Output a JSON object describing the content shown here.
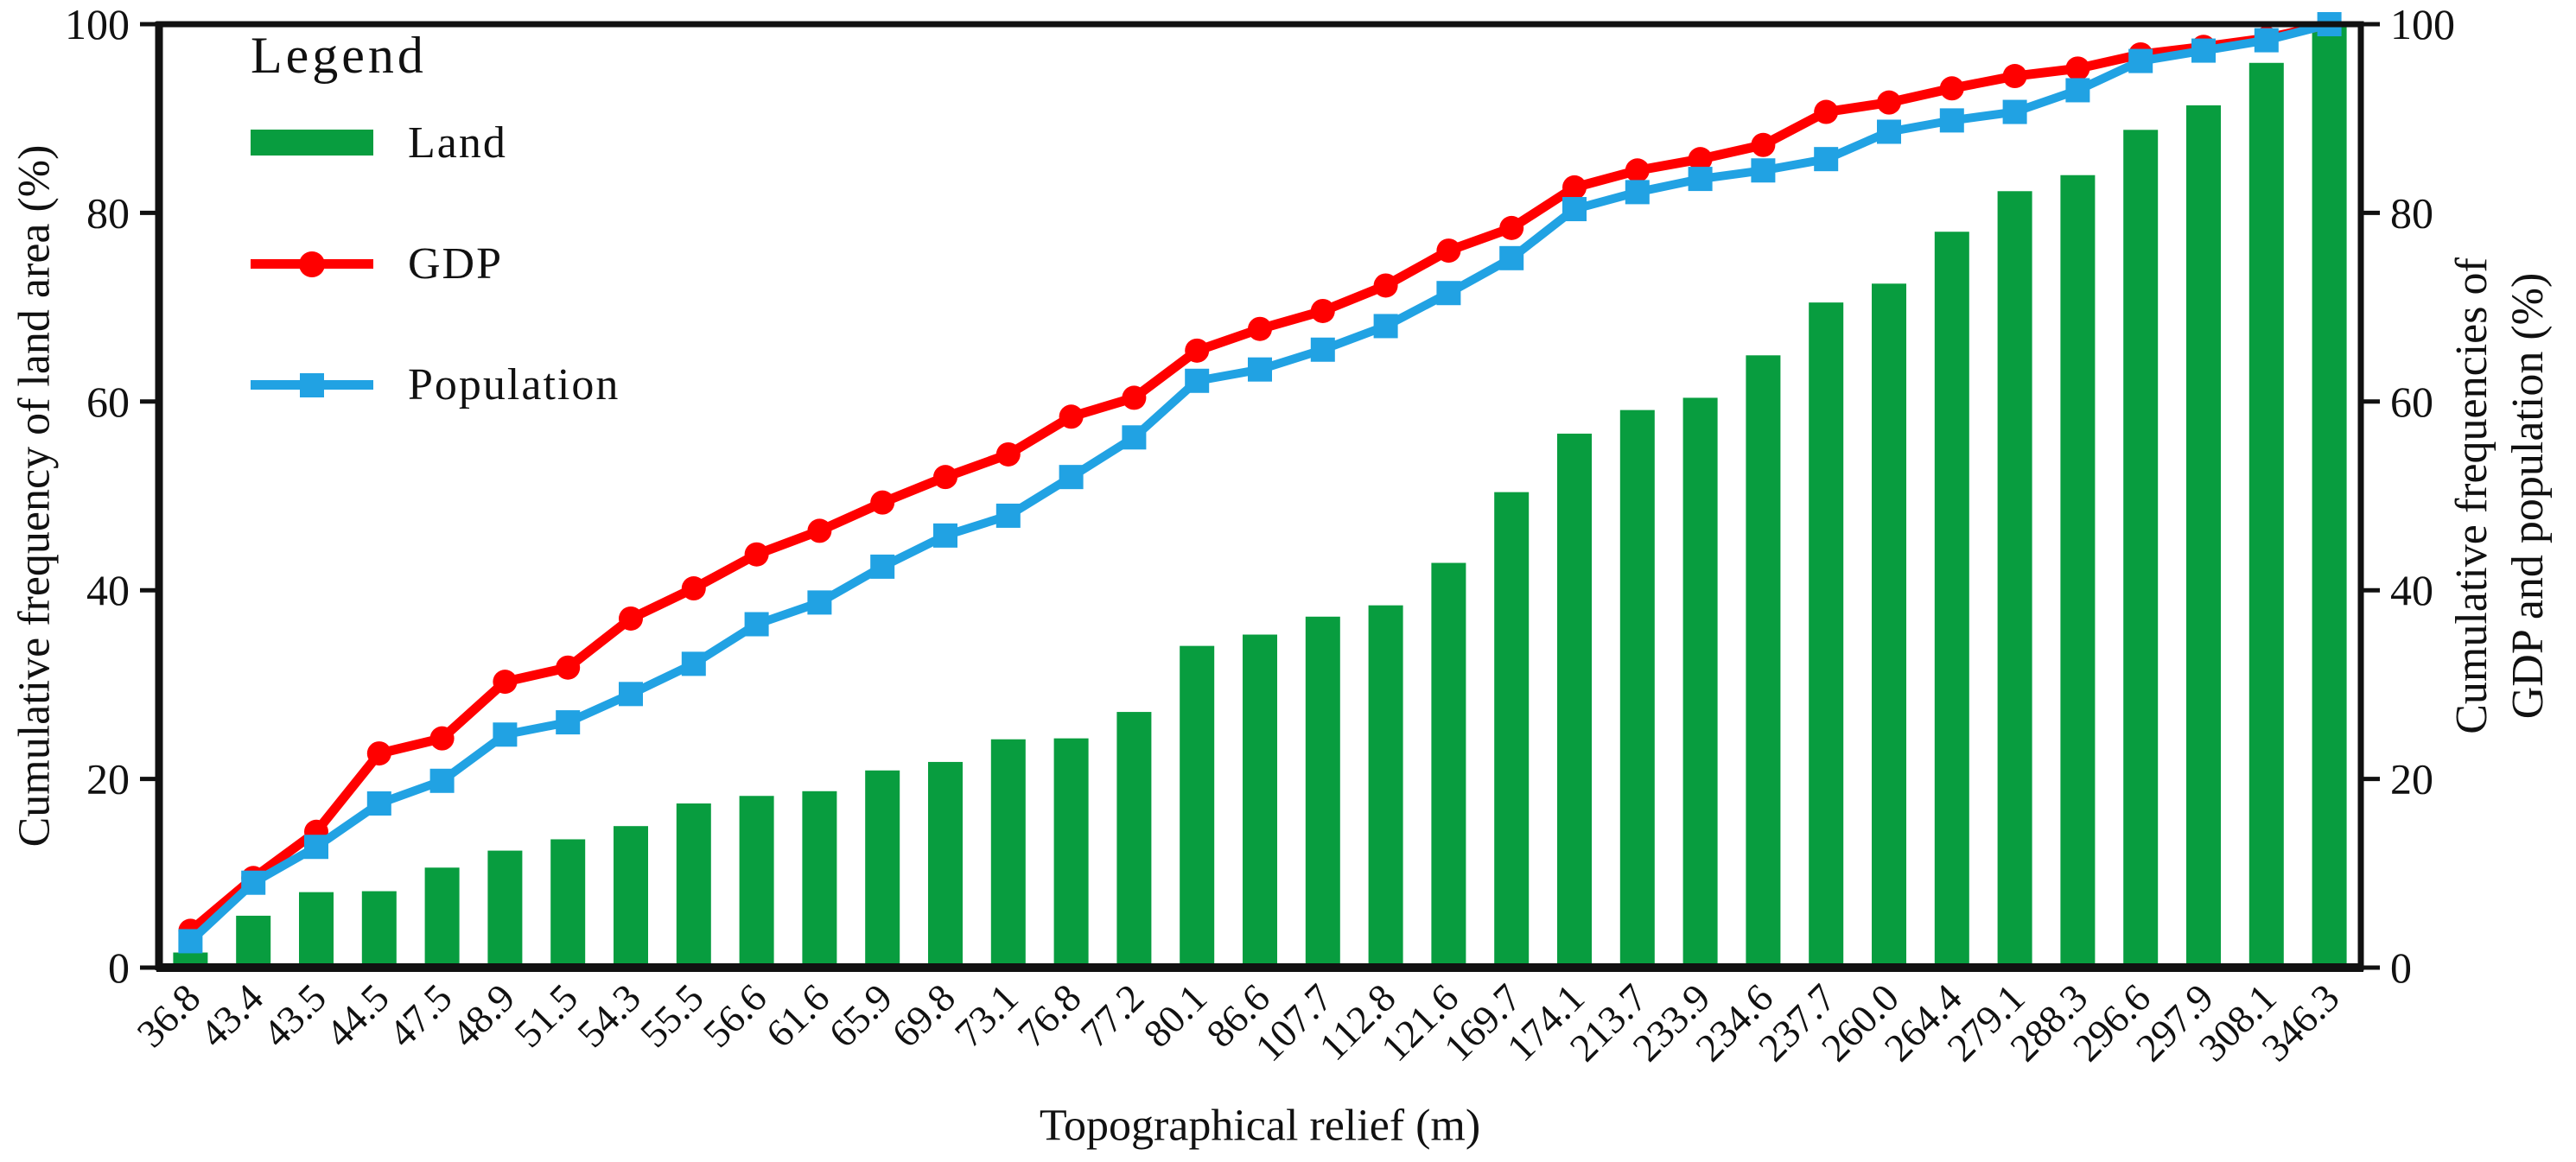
{
  "figure": {
    "x_axis_title": "Topographical relief (m)",
    "y_axis_left_title": "Cumulative frequency of land area (%)",
    "y_axis_right_title_line1": "Cumulative frequencies of",
    "y_axis_right_title_line2": "GDP and population (%)",
    "legend": {
      "title": "Legend",
      "items": [
        {
          "label": "Land",
          "type": "bar",
          "color": "#089D3F"
        },
        {
          "label": "GDP",
          "type": "line-circle",
          "color": "#FF0000"
        },
        {
          "label": "Population",
          "type": "line-square",
          "color": "#21A2E3"
        }
      ]
    }
  },
  "chart_data": {
    "type": "combo",
    "title": "",
    "xlabel": "Topographical relief (m)",
    "ylabel_left": "Cumulative frequency of land area (%)",
    "ylabel_right": "Cumulative frequencies of GDP and population (%)",
    "ylim": [
      0,
      100
    ],
    "y_ticks": [
      0,
      20,
      40,
      60,
      80,
      100
    ],
    "grid": false,
    "legend_position": "top-left",
    "x_tick_rotation_deg": -45,
    "categories": [
      "36.8",
      "43.4",
      "43.5",
      "44.5",
      "47.5",
      "48.9",
      "51.5",
      "54.3",
      "55.5",
      "56.6",
      "61.6",
      "65.9",
      "69.8",
      "73.1",
      "76.8",
      "77.2",
      "80.1",
      "86.6",
      "107.7",
      "112.8",
      "121.6",
      "169.7",
      "174.1",
      "213.7",
      "233.9",
      "234.6",
      "237.7",
      "260.0",
      "264.4",
      "279.1",
      "288.3",
      "296.6",
      "297.9",
      "308.1",
      "346.3"
    ],
    "series": [
      {
        "name": "Land",
        "type": "bar",
        "axis": "left",
        "color": "#089D3F",
        "values": [
          1.6,
          5.5,
          8.0,
          8.1,
          10.6,
          12.4,
          13.6,
          15.0,
          17.4,
          18.2,
          18.7,
          20.9,
          21.8,
          24.2,
          24.3,
          27.1,
          34.1,
          35.3,
          37.2,
          38.4,
          42.9,
          50.4,
          56.6,
          59.1,
          60.4,
          64.9,
          70.5,
          72.5,
          78.0,
          82.3,
          84.0,
          88.8,
          91.4,
          95.9,
          100
        ]
      },
      {
        "name": "GDP",
        "type": "line",
        "marker": "circle",
        "axis": "right",
        "color": "#FF0000",
        "values": [
          3.9,
          9.5,
          14.4,
          22.7,
          24.3,
          30.3,
          31.8,
          37.0,
          40.2,
          43.8,
          46.3,
          49.3,
          52.0,
          54.4,
          58.4,
          60.4,
          65.4,
          67.7,
          69.6,
          72.3,
          76.0,
          78.4,
          82.7,
          84.5,
          85.7,
          87.2,
          90.7,
          91.7,
          93.2,
          94.5,
          95.3,
          96.8,
          97.6,
          98.5,
          100
        ]
      },
      {
        "name": "Population",
        "type": "line",
        "marker": "square",
        "axis": "right",
        "color": "#21A2E3",
        "values": [
          2.8,
          9.0,
          12.8,
          17.4,
          19.8,
          24.7,
          26.0,
          29.0,
          32.2,
          36.4,
          38.7,
          42.5,
          45.8,
          47.9,
          52.0,
          56.2,
          62.2,
          63.4,
          65.5,
          68.0,
          71.5,
          75.2,
          80.4,
          82.2,
          83.6,
          84.5,
          85.7,
          88.6,
          89.8,
          90.7,
          93.0,
          96.1,
          97.2,
          98.3,
          100
        ]
      }
    ]
  }
}
